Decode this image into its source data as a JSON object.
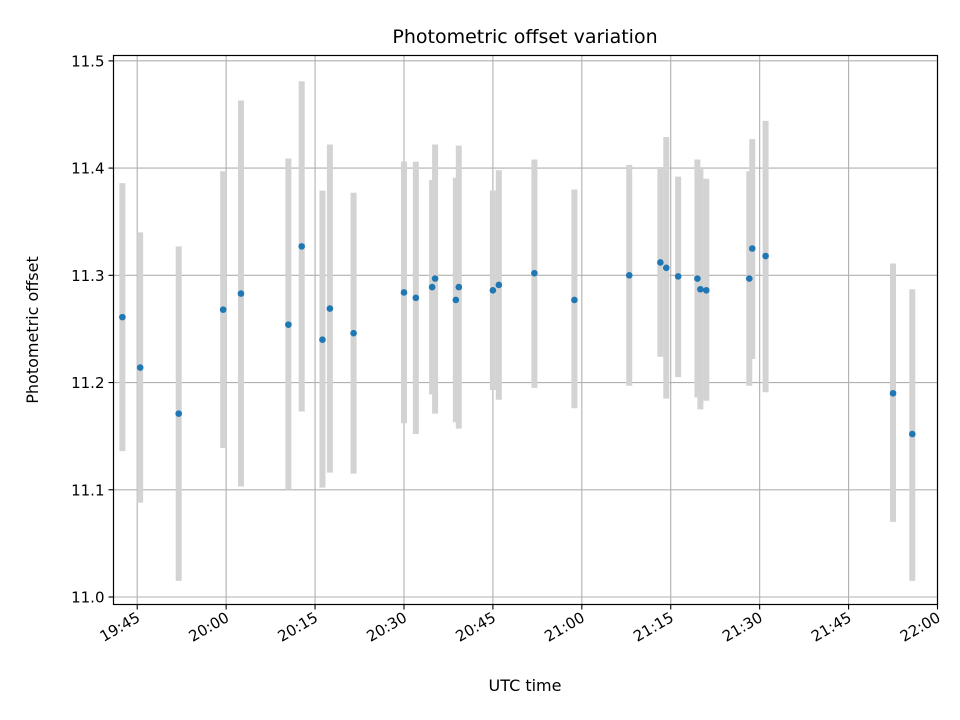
{
  "chart_data": {
    "type": "scatter",
    "title": "Photometric offset variation",
    "xlabel": "UTC time",
    "ylabel": "Photometric offset",
    "grid": true,
    "x_tick_labels": [
      "19:45",
      "20:00",
      "20:15",
      "20:30",
      "20:45",
      "21:00",
      "21:15",
      "21:30",
      "21:45",
      "22:00"
    ],
    "y_tick_labels": [
      "11.0",
      "11.1",
      "11.2",
      "11.3",
      "11.4",
      "11.5"
    ],
    "xlim": [
      "19:41",
      "22:00"
    ],
    "ylim": [
      10.993,
      11.505
    ],
    "colors": {
      "point": "#1f77b4",
      "errorbar": "#d3d3d3",
      "grid": "#b0b0b0"
    },
    "series": [
      {
        "points": [
          {
            "x": "19:42:30",
            "y": 11.261,
            "ylow": 11.136,
            "yhigh": 11.386
          },
          {
            "x": "19:45:30",
            "y": 11.214,
            "ylow": 11.088,
            "yhigh": 11.34
          },
          {
            "x": "19:52:00",
            "y": 11.171,
            "ylow": 11.015,
            "yhigh": 11.327
          },
          {
            "x": "19:59:30",
            "y": 11.268,
            "ylow": 11.139,
            "yhigh": 11.397
          },
          {
            "x": "20:02:30",
            "y": 11.283,
            "ylow": 11.103,
            "yhigh": 11.463
          },
          {
            "x": "20:10:30",
            "y": 11.254,
            "ylow": 11.1,
            "yhigh": 11.409
          },
          {
            "x": "20:12:45",
            "y": 11.327,
            "ylow": 11.173,
            "yhigh": 11.481
          },
          {
            "x": "20:16:15",
            "y": 11.24,
            "ylow": 11.102,
            "yhigh": 11.379
          },
          {
            "x": "20:17:30",
            "y": 11.269,
            "ylow": 11.116,
            "yhigh": 11.422
          },
          {
            "x": "20:21:30",
            "y": 11.246,
            "ylow": 11.115,
            "yhigh": 11.377
          },
          {
            "x": "20:30:00",
            "y": 11.284,
            "ylow": 11.162,
            "yhigh": 11.406
          },
          {
            "x": "20:32:00",
            "y": 11.279,
            "ylow": 11.152,
            "yhigh": 11.406
          },
          {
            "x": "20:34:45",
            "y": 11.289,
            "ylow": 11.189,
            "yhigh": 11.389
          },
          {
            "x": "20:35:15",
            "y": 11.297,
            "ylow": 11.171,
            "yhigh": 11.422
          },
          {
            "x": "20:38:45",
            "y": 11.277,
            "ylow": 11.163,
            "yhigh": 11.391
          },
          {
            "x": "20:39:15",
            "y": 11.289,
            "ylow": 11.157,
            "yhigh": 11.421
          },
          {
            "x": "20:45:00",
            "y": 11.286,
            "ylow": 11.193,
            "yhigh": 11.379
          },
          {
            "x": "20:46:00",
            "y": 11.291,
            "ylow": 11.184,
            "yhigh": 11.398
          },
          {
            "x": "20:52:00",
            "y": 11.302,
            "ylow": 11.195,
            "yhigh": 11.408
          },
          {
            "x": "20:58:45",
            "y": 11.277,
            "ylow": 11.176,
            "yhigh": 11.38
          },
          {
            "x": "21:08:00",
            "y": 11.3,
            "ylow": 11.197,
            "yhigh": 11.403
          },
          {
            "x": "21:13:15",
            "y": 11.312,
            "ylow": 11.224,
            "yhigh": 11.401
          },
          {
            "x": "21:14:15",
            "y": 11.307,
            "ylow": 11.185,
            "yhigh": 11.429
          },
          {
            "x": "21:16:15",
            "y": 11.299,
            "ylow": 11.205,
            "yhigh": 11.392
          },
          {
            "x": "21:19:30",
            "y": 11.297,
            "ylow": 11.186,
            "yhigh": 11.408
          },
          {
            "x": "21:20:00",
            "y": 11.287,
            "ylow": 11.175,
            "yhigh": 11.399
          },
          {
            "x": "21:21:00",
            "y": 11.286,
            "ylow": 11.183,
            "yhigh": 11.39
          },
          {
            "x": "21:28:15",
            "y": 11.297,
            "ylow": 11.197,
            "yhigh": 11.397
          },
          {
            "x": "21:28:45",
            "y": 11.325,
            "ylow": 11.222,
            "yhigh": 11.427
          },
          {
            "x": "21:31:00",
            "y": 11.318,
            "ylow": 11.191,
            "yhigh": 11.444
          },
          {
            "x": "21:52:30",
            "y": 11.19,
            "ylow": 11.07,
            "yhigh": 11.311
          },
          {
            "x": "21:55:45",
            "y": 11.152,
            "ylow": 11.015,
            "yhigh": 11.287
          }
        ]
      }
    ]
  }
}
